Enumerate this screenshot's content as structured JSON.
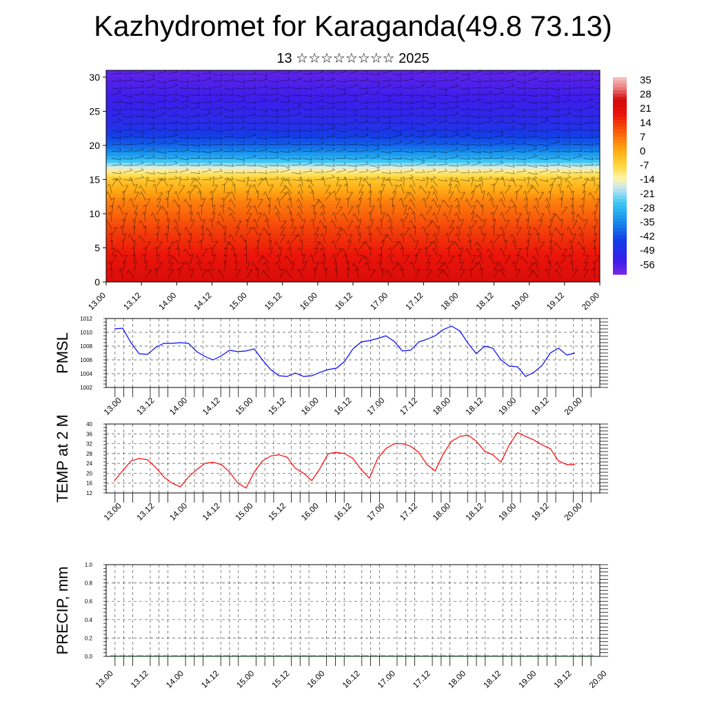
{
  "header": {
    "title": "Kazhydromet for Karaganda(49.8 73.13)",
    "subtitle": "13 ☆☆☆☆☆☆☆☆ 2025"
  },
  "colors": {
    "pmsl_line": "#0000ff",
    "temp_line": "#ff0000",
    "grid": "#000000",
    "precip_bar": "#2e8b57"
  },
  "chart_data": [
    {
      "id": "cross-section",
      "type": "heatmap",
      "title": "",
      "xlabel": "",
      "ylabel": "",
      "x_tick_labels": [
        "13.00",
        "13.12",
        "14.00",
        "14.12",
        "15.00",
        "15.12",
        "16.00",
        "16.12",
        "17.00",
        "17.12",
        "18.00",
        "18.12",
        "19.00",
        "19.12",
        "20.00"
      ],
      "y_ticks": [
        0,
        5,
        10,
        15,
        20,
        25,
        30
      ],
      "ylim": [
        0,
        31
      ],
      "colorbar_labels": [
        "35",
        "28",
        "21",
        "14",
        "7",
        "0",
        "-7",
        "-14",
        "-21",
        "-28",
        "-35",
        "-42",
        "-49",
        "-56"
      ],
      "colorbar_range": [
        -63,
        42
      ],
      "layers": [
        {
          "height": 0,
          "value": 28
        },
        {
          "height": 4,
          "value": 22
        },
        {
          "height": 8,
          "value": 16
        },
        {
          "height": 12,
          "value": 8
        },
        {
          "height": 15,
          "value": -2
        },
        {
          "height": 16.5,
          "value": -12
        },
        {
          "height": 18,
          "value": -28
        },
        {
          "height": 20,
          "value": -40
        },
        {
          "height": 23,
          "value": -50
        },
        {
          "height": 26,
          "value": -55
        },
        {
          "height": 31,
          "value": -60
        }
      ],
      "warm_spots": [
        {
          "x": 17.2,
          "height": 2,
          "value": 35
        },
        {
          "x": 19.1,
          "height": 2,
          "value": 36
        }
      ],
      "overlay": "wind barbs"
    },
    {
      "id": "pmsl",
      "type": "line",
      "title": "",
      "ylabel": "PMSL",
      "xlabel": "",
      "ylim": [
        1002,
        1012
      ],
      "y_ticks": [
        1002,
        1004,
        1006,
        1008,
        1010,
        1012
      ],
      "x_tick_labels": [
        "13.00",
        "13.12",
        "14.00",
        "14.12",
        "15.00",
        "15.12",
        "16.00",
        "16.12",
        "17.00",
        "17.12",
        "18.00",
        "18.12",
        "19.00",
        "19.12",
        "20.00"
      ],
      "xlim": [
        0,
        7
      ],
      "series": [
        {
          "x": [
            0,
            0.125,
            0.25,
            0.375,
            0.5,
            0.625,
            0.75,
            0.875,
            1,
            1.125,
            1.25,
            1.375,
            1.5,
            1.625,
            1.75,
            1.875,
            2,
            2.125,
            2.25,
            2.375,
            2.5,
            2.625,
            2.75,
            2.875,
            3,
            3.125,
            3.25,
            3.375,
            3.5,
            3.625,
            3.75,
            3.875,
            4,
            4.125,
            4.25,
            4.375,
            4.5,
            4.625,
            4.75,
            4.875,
            5,
            5.125,
            5.25,
            5.375,
            5.5,
            5.625,
            5.75,
            5.875,
            6,
            6.125,
            6.25,
            6.375,
            6.5,
            6.625,
            6.75,
            6.875,
            7
          ],
          "values": [
            1010.5,
            1010.6,
            1008.5,
            1006.9,
            1006.8,
            1007.8,
            1008.4,
            1008.4,
            1008.5,
            1008.4,
            1007.2,
            1006.5,
            1006.0,
            1006.6,
            1007.4,
            1007.2,
            1007.3,
            1007.6,
            1006.0,
            1004.6,
            1003.7,
            1003.6,
            1004.1,
            1003.6,
            1003.7,
            1004.2,
            1004.6,
            1004.8,
            1005.8,
            1007.6,
            1008.6,
            1008.8,
            1009.1,
            1009.5,
            1008.7,
            1007.3,
            1007.4,
            1008.6,
            1009.0,
            1009.5,
            1010.4,
            1010.9,
            1010.2,
            1008.4,
            1006.9,
            1008.0,
            1007.7,
            1006.0,
            1005.1,
            1005.0,
            1003.6,
            1004.2,
            1005.2,
            1007.0,
            1007.7,
            1006.7,
            1007.0
          ]
        }
      ]
    },
    {
      "id": "temp2m",
      "type": "line",
      "title": "",
      "ylabel": "TEMP at 2 M",
      "xlabel": "",
      "ylim": [
        12,
        40
      ],
      "y_ticks": [
        12,
        16,
        20,
        24,
        28,
        32,
        36,
        40
      ],
      "x_tick_labels": [
        "13.00",
        "13.12",
        "14.00",
        "14.12",
        "15.00",
        "15.12",
        "16.00",
        "16.12",
        "17.00",
        "17.12",
        "18.00",
        "18.12",
        "19.00",
        "19.12",
        "20.00"
      ],
      "xlim": [
        0,
        7
      ],
      "series": [
        {
          "x": [
            0,
            0.125,
            0.25,
            0.375,
            0.5,
            0.625,
            0.75,
            0.875,
            1,
            1.125,
            1.25,
            1.375,
            1.5,
            1.625,
            1.75,
            1.875,
            2,
            2.125,
            2.25,
            2.375,
            2.5,
            2.625,
            2.75,
            2.875,
            3,
            3.125,
            3.25,
            3.375,
            3.5,
            3.625,
            3.75,
            3.875,
            4,
            4.125,
            4.25,
            4.375,
            4.5,
            4.625,
            4.75,
            4.875,
            5,
            5.125,
            5.25,
            5.375,
            5.5,
            5.625,
            5.75,
            5.875,
            6,
            6.125,
            6.25,
            6.375,
            6.5,
            6.625,
            6.75,
            6.875,
            7
          ],
          "values": [
            17.0,
            21.0,
            25.0,
            26.0,
            25.5,
            22.5,
            18.5,
            16.0,
            14.5,
            18.5,
            21.5,
            24.0,
            24.5,
            23.5,
            20.5,
            16.0,
            14.0,
            20.5,
            25.0,
            27.0,
            27.5,
            26.5,
            22.0,
            20.0,
            17.0,
            22.0,
            28.0,
            28.5,
            28.0,
            26.0,
            21.5,
            18.0,
            26.0,
            30.0,
            32.0,
            32.0,
            31.0,
            28.5,
            23.5,
            21.0,
            28.0,
            33.0,
            35.0,
            35.5,
            33.0,
            29.0,
            27.5,
            24.5,
            31.5,
            36.5,
            35.0,
            33.5,
            31.5,
            30.0,
            25.0,
            23.5,
            23.5
          ]
        }
      ]
    },
    {
      "id": "precip",
      "type": "bar",
      "title": "",
      "ylabel": "PRECIP, mm",
      "xlabel": "",
      "ylim": [
        0,
        1.0
      ],
      "y_ticks": [
        0.0,
        0.2,
        0.4,
        0.6,
        0.8,
        1.0
      ],
      "x_tick_labels": [
        "13.00",
        "13.12",
        "14.00",
        "14.12",
        "15.00",
        "15.12",
        "16.00",
        "16.12",
        "17.00",
        "17.12",
        "18.00",
        "18.12",
        "19.00",
        "19.12",
        "20.00"
      ],
      "xlim": [
        0,
        7
      ],
      "values": [
        0,
        0,
        0,
        0,
        0,
        0,
        0,
        0,
        0,
        0,
        0,
        0,
        0,
        0,
        0,
        0,
        0,
        0,
        0,
        0,
        0,
        0,
        0,
        0,
        0,
        0,
        0,
        0,
        0,
        0,
        0,
        0,
        0,
        0,
        0,
        0,
        0,
        0,
        0,
        0,
        0,
        0,
        0,
        0,
        0,
        0,
        0,
        0,
        0,
        0,
        0,
        0,
        0,
        0,
        0,
        0
      ]
    }
  ]
}
